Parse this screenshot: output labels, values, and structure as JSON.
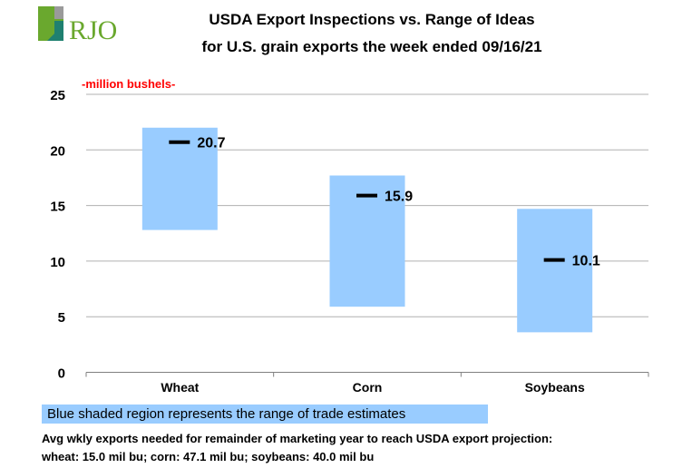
{
  "logo_text": "RJO",
  "chart_data": {
    "type": "floating-bar",
    "title": [
      "USDA Export Inspections vs. Range of Ideas",
      "for U.S. grain exports the week ended 09/16/21"
    ],
    "ylabel": "-million bushels-",
    "ylim": [
      0,
      25
    ],
    "yticks": [
      0,
      5,
      10,
      15,
      20,
      25
    ],
    "grid": true,
    "categories": [
      "Wheat",
      "Corn",
      "Soybeans"
    ],
    "range_low": [
      12.8,
      5.9,
      3.6
    ],
    "range_high": [
      22.0,
      17.7,
      14.7
    ],
    "actual": [
      20.7,
      15.9,
      10.1
    ],
    "actual_labels": [
      "20.7",
      "15.9",
      "10.1"
    ],
    "range_color": "#99ccff"
  },
  "legend_text": "Blue shaded region represents the range of trade estimates",
  "notes": [
    "Avg wkly exports needed for remainder of marketing year to reach USDA export projection:",
    "wheat: 15.0 mil bu; corn: 47.1 mil bu; soybeans: 40.0 mil bu"
  ]
}
